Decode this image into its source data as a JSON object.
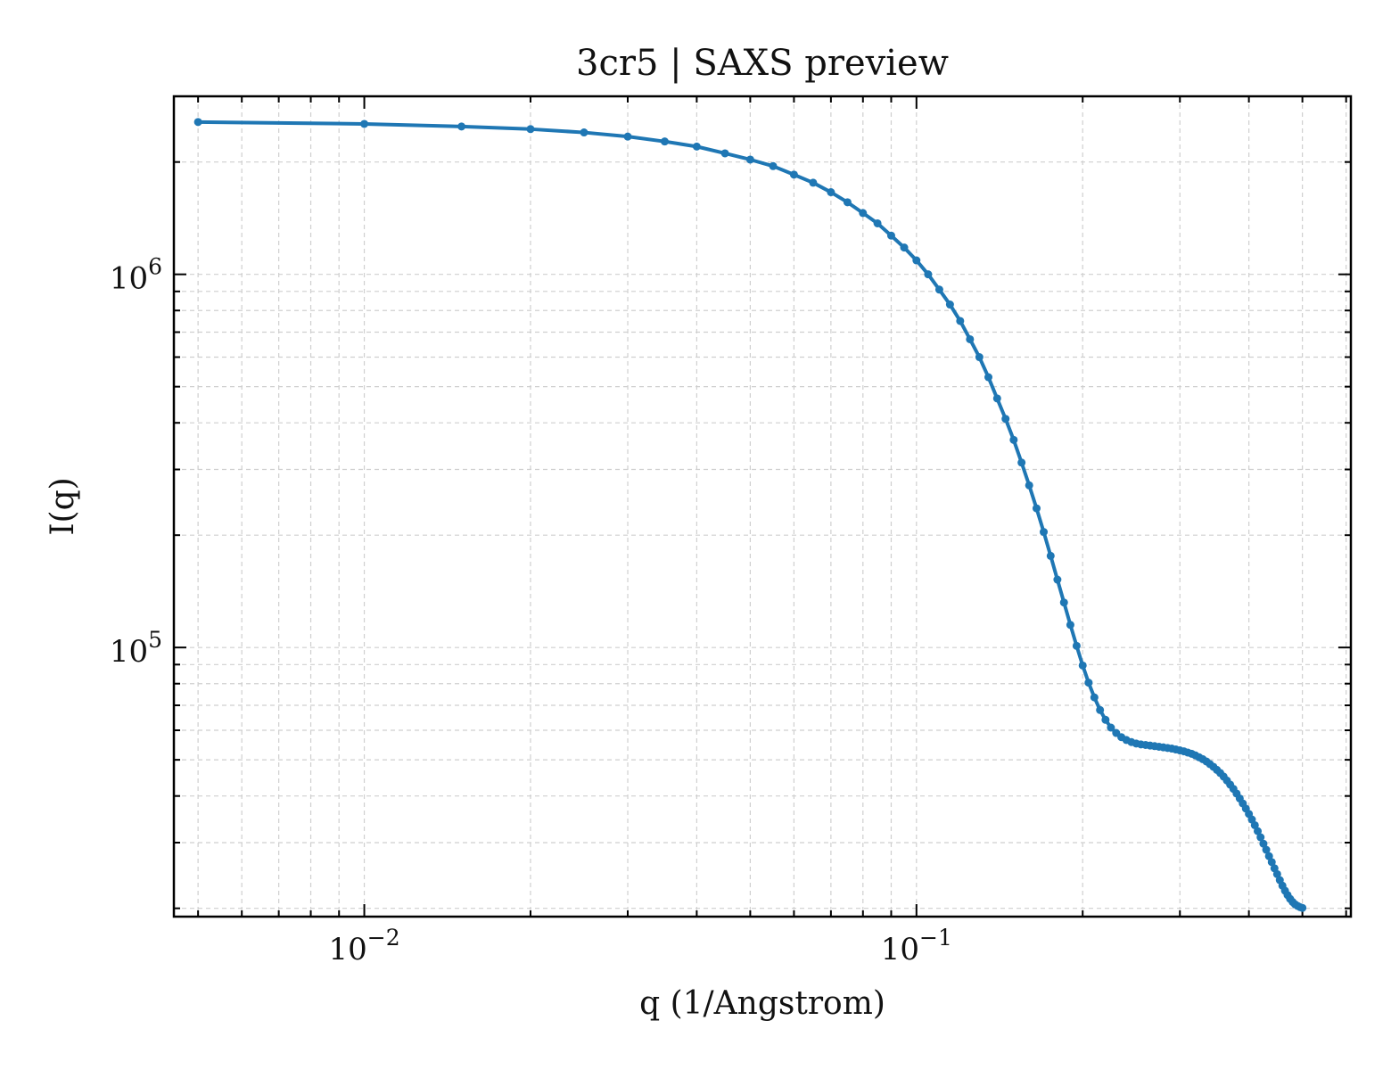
{
  "chart_data": {
    "type": "line",
    "title": "3cr5 | SAXS preview",
    "xlabel": "q (1/Angstrom)",
    "ylabel": "I(q)",
    "xscale": "log",
    "yscale": "log",
    "xlim": [
      0.00452,
      0.612
    ],
    "ylim": [
      19000,
      3000000
    ],
    "grid": true,
    "legend": "none",
    "x_ticks": [
      {
        "value": 0.01,
        "base": "10",
        "exp": "−2"
      },
      {
        "value": 0.1,
        "base": "10",
        "exp": "−1"
      }
    ],
    "y_ticks": [
      {
        "value": 100000,
        "base": "10",
        "exp": "5"
      },
      {
        "value": 1000000,
        "base": "10",
        "exp": "6"
      }
    ],
    "series": [
      {
        "color": "#1f77b4",
        "x": [
          0.005,
          0.01,
          0.015,
          0.02,
          0.025,
          0.03,
          0.035,
          0.04,
          0.045,
          0.05,
          0.055,
          0.06,
          0.065,
          0.07,
          0.075,
          0.08,
          0.085,
          0.09,
          0.095,
          0.1,
          0.105,
          0.11,
          0.115,
          0.12,
          0.125,
          0.13,
          0.135,
          0.14,
          0.145,
          0.15,
          0.155,
          0.16,
          0.165,
          0.17,
          0.175,
          0.18,
          0.185,
          0.19,
          0.195,
          0.2,
          0.205,
          0.21,
          0.215,
          0.22,
          0.225,
          0.23,
          0.235,
          0.24,
          0.245,
          0.25,
          0.255,
          0.26,
          0.265,
          0.27,
          0.275,
          0.28,
          0.285,
          0.29,
          0.295,
          0.3,
          0.305,
          0.31,
          0.315,
          0.32,
          0.325,
          0.33,
          0.335,
          0.34,
          0.345,
          0.35,
          0.355,
          0.36,
          0.365,
          0.37,
          0.375,
          0.38,
          0.385,
          0.39,
          0.395,
          0.4,
          0.405,
          0.41,
          0.415,
          0.42,
          0.425,
          0.43,
          0.435,
          0.44,
          0.445,
          0.45,
          0.455,
          0.46,
          0.465,
          0.47,
          0.475,
          0.48,
          0.485,
          0.49,
          0.495,
          0.5
        ],
        "y": [
          2560000,
          2530000,
          2490000,
          2450000,
          2400000,
          2340000,
          2270000,
          2200000,
          2110000,
          2030000,
          1950000,
          1850000,
          1760000,
          1660000,
          1560000,
          1460000,
          1370000,
          1270000,
          1180000,
          1090000,
          1000000,
          910000,
          830000,
          750000,
          670000,
          600000,
          530000,
          465000,
          410000,
          360000,
          313000,
          272000,
          236000,
          204000,
          176000,
          152000,
          132000,
          115000,
          101000,
          89500,
          80500,
          73500,
          68000,
          64000,
          61000,
          59000,
          57500,
          56500,
          55800,
          55300,
          55000,
          54800,
          54600,
          54400,
          54200,
          54000,
          53800,
          53600,
          53300,
          53000,
          52700,
          52300,
          51900,
          51400,
          50800,
          50200,
          49500,
          48700,
          47900,
          47000,
          46100,
          45100,
          44000,
          42900,
          41800,
          40600,
          39400,
          38200,
          37000,
          35800,
          34600,
          33400,
          32200,
          31000,
          29800,
          28700,
          27600,
          26600,
          25600,
          24700,
          23800,
          23000,
          22300,
          21700,
          21200,
          20800,
          20500,
          20300,
          20150,
          20050
        ]
      }
    ]
  }
}
